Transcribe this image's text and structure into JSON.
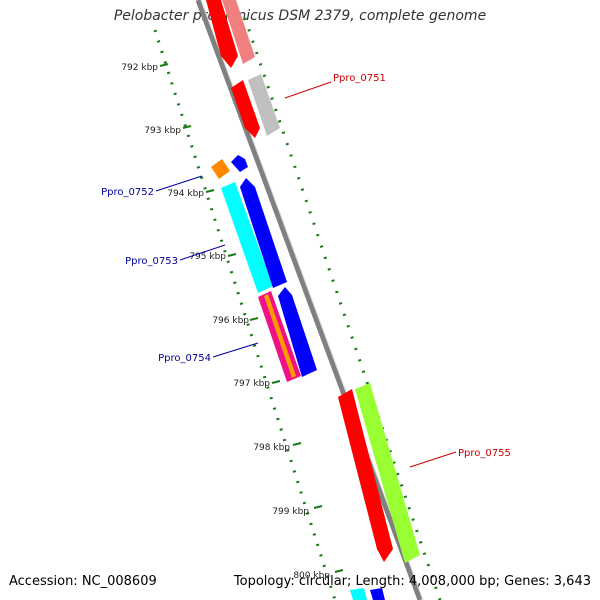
{
  "title": "Pelobacter propionicus DSM 2379, complete genome",
  "footer": {
    "accession": "Accession: NC_008609",
    "summary": "Topology: circular; Length: 4,008,000 bp; Genes: 3,643"
  },
  "ticks": [
    "792 kbp",
    "793 kbp",
    "794 kbp",
    "795 kbp",
    "796 kbp",
    "797 kbp",
    "798 kbp",
    "799 kbp",
    "800 kbp"
  ],
  "gene_labels": [
    {
      "text": "Ppro_0751",
      "color": "#cc0000"
    },
    {
      "text": "Ppro_0752",
      "color": "#000099"
    },
    {
      "text": "Ppro_0753",
      "color": "#000099"
    },
    {
      "text": "Ppro_0754",
      "color": "#000099"
    },
    {
      "text": "Ppro_0755",
      "color": "#cc0000"
    }
  ],
  "colors": {
    "backbone": "#808080",
    "dots": "#1a7a1a",
    "forward_gene": "#ff0000",
    "reverse_gene": "#0000ff",
    "gray_feature": "#c0c0c0",
    "cyan_feature": "#00ffff",
    "green_feature": "#99ff33",
    "orange_feature": "#ff8800",
    "magenta_feature": "#ee1188"
  }
}
